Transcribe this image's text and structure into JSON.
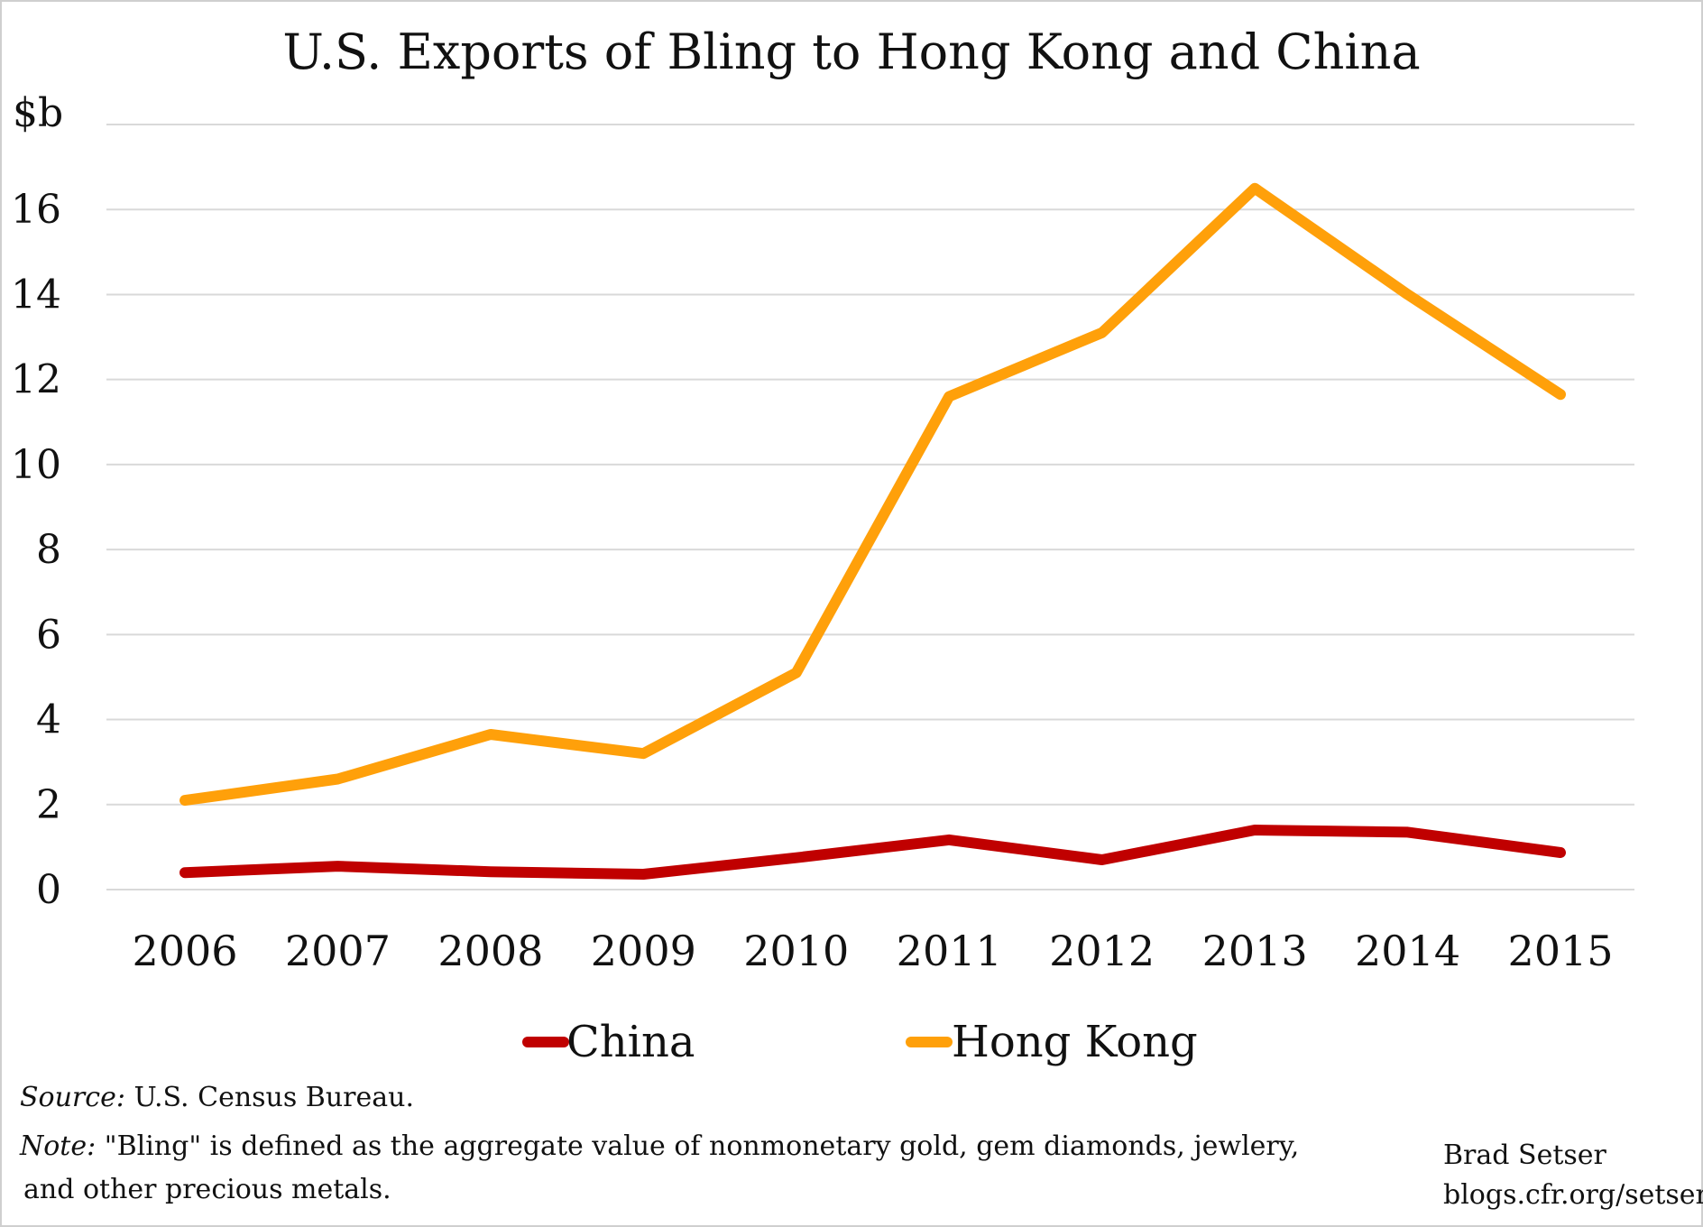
{
  "colors": {
    "china": "#c00000",
    "hong_kong": "#ffa00a",
    "grid": "#d9d9d9",
    "frame": "#cfcfcf"
  },
  "chart_data": {
    "type": "line",
    "title": "U.S. Exports of Bling to Hong Kong and China",
    "ylabel": "$b",
    "xlabel": "",
    "categories": [
      "2006",
      "2007",
      "2008",
      "2009",
      "2010",
      "2011",
      "2012",
      "2013",
      "2014",
      "2015"
    ],
    "yticks": [
      "0",
      "2",
      "4",
      "6",
      "8",
      "10",
      "12",
      "14",
      "16"
    ],
    "ylim": [
      0,
      18
    ],
    "grid": true,
    "legend_position": "bottom",
    "series": [
      {
        "name": "China",
        "values": [
          0.4,
          0.55,
          0.42,
          0.36,
          0.75,
          1.17,
          0.7,
          1.4,
          1.35,
          0.87
        ]
      },
      {
        "name": "Hong Kong",
        "values": [
          2.1,
          2.6,
          3.65,
          3.2,
          5.1,
          11.6,
          13.1,
          16.5,
          14.0,
          11.65
        ]
      }
    ]
  },
  "footer": {
    "source_label": "Source:",
    "source_text": " U.S. Census Bureau.",
    "note_label": "Note:",
    "note_line1": " \"Bling\" is defined as the aggregate value of  nonmonetary gold,  gem diamonds, jewlery,",
    "note_line2": "and other precious metals."
  },
  "credit": {
    "author": "Brad Setser",
    "site": "blogs.cfr.org/setser"
  }
}
